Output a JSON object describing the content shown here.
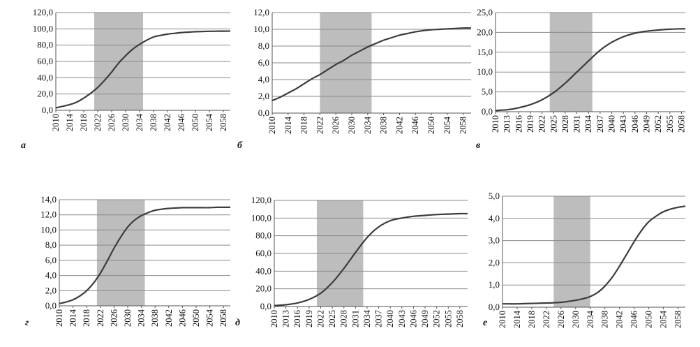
{
  "chart_data": [
    {
      "type": "line",
      "panel_label": "а",
      "ylim": [
        0,
        120
      ],
      "y_ticks": [
        "0,0",
        "20,0",
        "40,0",
        "60,0",
        "80,0",
        "100,0",
        "120,0"
      ],
      "x_range": [
        2010,
        2060
      ],
      "x_ticks": [
        "2010",
        "2014",
        "2018",
        "2022",
        "2026",
        "2030",
        "2034",
        "2038",
        "2042",
        "2046",
        "2050",
        "2054",
        "2058"
      ],
      "highlight_range": [
        2021,
        2035
      ],
      "series": [
        {
          "x": [
            2010,
            2012,
            2014,
            2016,
            2018,
            2020,
            2022,
            2024,
            2026,
            2028,
            2030,
            2032,
            2034,
            2036,
            2038,
            2040,
            2042,
            2044,
            2046,
            2048,
            2050,
            2052,
            2054,
            2056,
            2058,
            2060
          ],
          "values": [
            3,
            5,
            7,
            10,
            15,
            21,
            28,
            37,
            47,
            58,
            67,
            75,
            81,
            86,
            90,
            92,
            93.5,
            94.5,
            95.5,
            96,
            96.5,
            96.8,
            97,
            97.1,
            97.2,
            97.3
          ]
        }
      ]
    },
    {
      "type": "line",
      "panel_label": "б",
      "ylim": [
        0,
        12
      ],
      "y_ticks": [
        "0,0",
        "2,0",
        "4,0",
        "6,0",
        "8,0",
        "10,0",
        "12,0"
      ],
      "x_range": [
        2010,
        2060
      ],
      "x_ticks": [
        "2010",
        "2014",
        "2018",
        "2022",
        "2026",
        "2030",
        "2034",
        "2038",
        "2042",
        "2046",
        "2050",
        "2054",
        "2058"
      ],
      "highlight_range": [
        2022,
        2035
      ],
      "series": [
        {
          "x": [
            2010,
            2012,
            2014,
            2016,
            2018,
            2020,
            2022,
            2024,
            2026,
            2028,
            2030,
            2032,
            2034,
            2036,
            2038,
            2040,
            2042,
            2044,
            2046,
            2048,
            2050,
            2052,
            2054,
            2056,
            2058,
            2060
          ],
          "values": [
            1.5,
            1.9,
            2.4,
            2.9,
            3.5,
            4.1,
            4.6,
            5.2,
            5.8,
            6.3,
            6.9,
            7.4,
            7.9,
            8.3,
            8.7,
            9.0,
            9.3,
            9.5,
            9.7,
            9.85,
            9.95,
            10.0,
            10.05,
            10.1,
            10.15,
            10.15
          ]
        }
      ]
    },
    {
      "type": "line",
      "panel_label": "в",
      "ylim": [
        0,
        25
      ],
      "y_ticks": [
        "0,0",
        "5,0",
        "10,0",
        "15,0",
        "20,0",
        "25,0"
      ],
      "x_range": [
        2010,
        2059
      ],
      "x_ticks": [
        "2010",
        "2013",
        "2016",
        "2019",
        "2022",
        "2025",
        "2028",
        "2031",
        "2034",
        "2037",
        "2040",
        "2043",
        "2046",
        "2049",
        "2052",
        "2055",
        "2058"
      ],
      "highlight_range": [
        2024,
        2035
      ],
      "series": [
        {
          "x": [
            2010,
            2013,
            2016,
            2019,
            2022,
            2025,
            2028,
            2031,
            2034,
            2037,
            2040,
            2043,
            2046,
            2049,
            2052,
            2055,
            2058,
            2059
          ],
          "values": [
            0.3,
            0.5,
            1.0,
            1.8,
            3.0,
            4.8,
            7.2,
            10.0,
            12.8,
            15.5,
            17.5,
            18.9,
            19.8,
            20.3,
            20.6,
            20.8,
            20.9,
            20.9
          ]
        }
      ]
    },
    {
      "type": "line",
      "panel_label": "г",
      "ylim": [
        0,
        14
      ],
      "y_ticks": [
        "0,0",
        "2,0",
        "4,0",
        "6,0",
        "8,0",
        "10,0",
        "12,0",
        "14,0"
      ],
      "x_range": [
        2010,
        2060
      ],
      "x_ticks": [
        "2010",
        "2014",
        "2018",
        "2022",
        "2026",
        "2030",
        "2034",
        "2038",
        "2042",
        "2046",
        "2050",
        "2054",
        "2058"
      ],
      "highlight_range": [
        2021,
        2035
      ],
      "series": [
        {
          "x": [
            2010,
            2012,
            2014,
            2016,
            2018,
            2020,
            2022,
            2024,
            2026,
            2028,
            2030,
            2032,
            2034,
            2036,
            2038,
            2040,
            2042,
            2044,
            2046,
            2048,
            2050,
            2052,
            2054,
            2056,
            2058,
            2060
          ],
          "values": [
            0.3,
            0.5,
            0.8,
            1.3,
            2.0,
            3.0,
            4.3,
            5.9,
            7.6,
            9.1,
            10.4,
            11.3,
            11.9,
            12.3,
            12.6,
            12.75,
            12.85,
            12.9,
            12.95,
            12.95,
            12.95,
            12.95,
            12.95,
            13.0,
            13.0,
            13.0
          ]
        }
      ]
    },
    {
      "type": "line",
      "panel_label": "д",
      "ylim": [
        0,
        120
      ],
      "y_ticks": [
        "0,0",
        "20,0",
        "40,0",
        "60,0",
        "80,0",
        "100,0",
        "120,0"
      ],
      "x_range": [
        2010,
        2060
      ],
      "x_ticks": [
        "2010",
        "2013",
        "2016",
        "2019",
        "2022",
        "2025",
        "2028",
        "2031",
        "2034",
        "2037",
        "2040",
        "2043",
        "2046",
        "2049",
        "2052",
        "2055",
        "2058"
      ],
      "highlight_range": [
        2021,
        2033
      ],
      "series": [
        {
          "x": [
            2010,
            2013,
            2016,
            2019,
            2022,
            2025,
            2028,
            2031,
            2034,
            2037,
            2040,
            2043,
            2046,
            2049,
            2052,
            2055,
            2058,
            2060
          ],
          "values": [
            1,
            2,
            4,
            8,
            15,
            27,
            43,
            61,
            78,
            90,
            97,
            100,
            102,
            103,
            104,
            104.5,
            105,
            105
          ]
        }
      ]
    },
    {
      "type": "line",
      "panel_label": "е",
      "ylim": [
        0,
        5
      ],
      "y_ticks": [
        "0,0",
        "1,0",
        "2,0",
        "3,0",
        "4,0",
        "5,0"
      ],
      "x_range": [
        2010,
        2060
      ],
      "x_ticks": [
        "2010",
        "2014",
        "2018",
        "2022",
        "2026",
        "2030",
        "2034",
        "2038",
        "2042",
        "2046",
        "2050",
        "2054",
        "2058"
      ],
      "highlight_range": [
        2024,
        2034
      ],
      "series": [
        {
          "x": [
            2010,
            2012,
            2014,
            2016,
            2018,
            2020,
            2022,
            2024,
            2026,
            2028,
            2030,
            2032,
            2034,
            2036,
            2038,
            2040,
            2042,
            2044,
            2046,
            2048,
            2050,
            2052,
            2054,
            2056,
            2058,
            2060
          ],
          "values": [
            0.15,
            0.15,
            0.15,
            0.16,
            0.17,
            0.18,
            0.19,
            0.2,
            0.22,
            0.26,
            0.31,
            0.38,
            0.48,
            0.66,
            0.95,
            1.35,
            1.85,
            2.4,
            2.95,
            3.45,
            3.85,
            4.1,
            4.3,
            4.42,
            4.5,
            4.55
          ]
        }
      ]
    }
  ]
}
